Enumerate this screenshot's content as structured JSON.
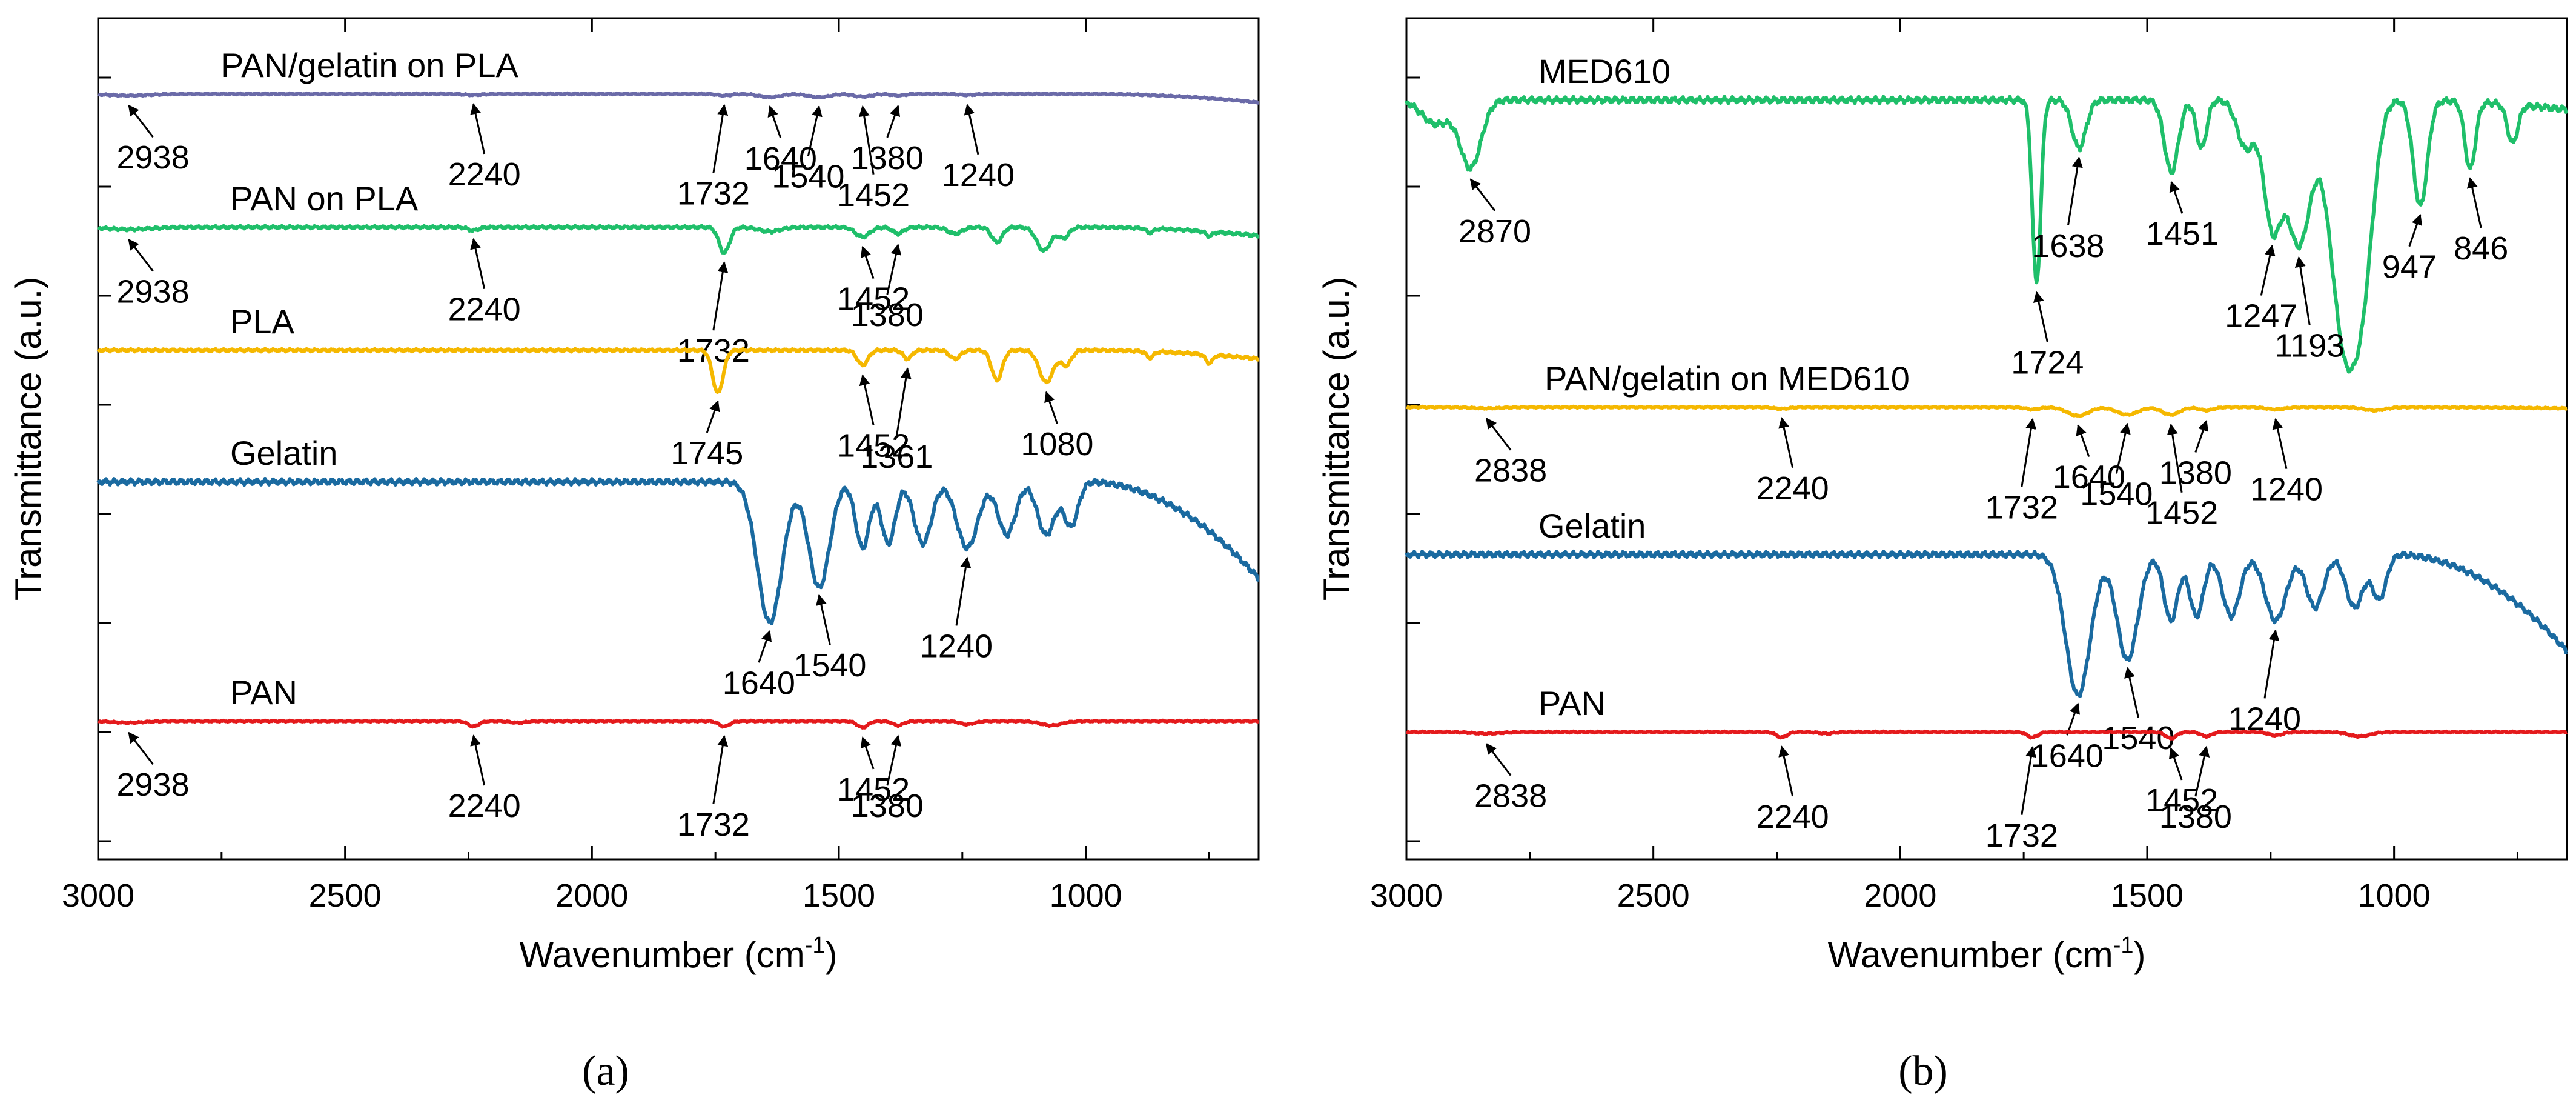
{
  "colors": {
    "red": "#e41a1c",
    "blue": "#1a6aa0",
    "yellow": "#f5b800",
    "green": "#1fbf6a",
    "purple": "#6a6aa8",
    "axis": "#000000"
  },
  "chart_data": [
    {
      "type": "line",
      "caption": "(a)",
      "xlabel": "Wavenumber (cm",
      "xlabel_sup": "-1",
      "xlabel_end": ")",
      "ylabel": "Transmittance (a.u.)",
      "xlim": [
        3000,
        650
      ],
      "x_reversed": true,
      "x_ticks": [
        "3000",
        "2500",
        "2000",
        "1500",
        "1000"
      ],
      "grid": false,
      "series": [
        {
          "name": "PAN/gelatin on PLA",
          "color": "purple",
          "baseline": 0.94,
          "tail": -0.08,
          "bands": [
            [
              2938,
              0.015,
              60
            ],
            [
              2240,
              0.01,
              25
            ],
            [
              1732,
              0.015,
              20
            ],
            [
              1640,
              0.03,
              30
            ],
            [
              1540,
              0.03,
              30
            ],
            [
              1452,
              0.025,
              25
            ],
            [
              1380,
              0.015,
              20
            ],
            [
              1240,
              0.01,
              25
            ]
          ],
          "peaks": [
            "2938",
            "2240",
            "1732",
            "1640",
            "1540",
            "1452",
            "1380",
            "1240"
          ]
        },
        {
          "name": "PAN on PLA",
          "color": "green",
          "baseline": 0.745,
          "tail": -0.04,
          "bands": [
            [
              2938,
              0.01,
              60
            ],
            [
              2240,
              0.015,
              15
            ],
            [
              1732,
              0.12,
              15
            ],
            [
              1640,
              0.02,
              30
            ],
            [
              1452,
              0.045,
              20
            ],
            [
              1380,
              0.03,
              15
            ],
            [
              1265,
              0.03,
              20
            ],
            [
              1180,
              0.07,
              15
            ],
            [
              1085,
              0.11,
              20
            ],
            [
              1045,
              0.05,
              15
            ],
            [
              870,
              0.02,
              10
            ],
            [
              750,
              0.02,
              10
            ]
          ],
          "peaks": [
            "2938",
            "2240",
            "1732",
            "1452",
            "1380"
          ]
        },
        {
          "name": "PLA",
          "color": "yellow",
          "baseline": 0.52,
          "tail": -0.04,
          "bands": [
            [
              1745,
              0.2,
              15
            ],
            [
              1452,
              0.07,
              15
            ],
            [
              1361,
              0.04,
              12
            ],
            [
              1265,
              0.04,
              15
            ],
            [
              1180,
              0.14,
              15
            ],
            [
              1080,
              0.15,
              20
            ],
            [
              1040,
              0.07,
              15
            ],
            [
              870,
              0.03,
              10
            ],
            [
              750,
              0.04,
              10
            ]
          ],
          "peaks": [
            "1745",
            "1452",
            "1361",
            "1080"
          ]
        },
        {
          "name": "Gelatin",
          "color": "blue",
          "baseline": 0.2,
          "tail": -0.22,
          "bands": [
            [
              1640,
              0.32,
              35
            ],
            [
              1540,
              0.24,
              30
            ],
            [
              1452,
              0.15,
              20
            ],
            [
              1400,
              0.14,
              20
            ],
            [
              1330,
              0.14,
              25
            ],
            [
              1240,
              0.15,
              30
            ],
            [
              1160,
              0.12,
              25
            ],
            [
              1080,
              0.12,
              25
            ],
            [
              1030,
              0.1,
              20
            ]
          ],
          "peaks": [
            "1640",
            "1540",
            "1240"
          ]
        },
        {
          "name": "PAN",
          "color": "red",
          "baseline": 0.0,
          "tail": 0.0,
          "bands": [
            [
              2938,
              0.015,
              40
            ],
            [
              2240,
              0.05,
              15
            ],
            [
              2150,
              0.015,
              20
            ],
            [
              1732,
              0.05,
              15
            ],
            [
              1452,
              0.06,
              15
            ],
            [
              1380,
              0.04,
              15
            ],
            [
              1240,
              0.03,
              20
            ],
            [
              1070,
              0.04,
              30
            ]
          ],
          "peaks": [
            "2938",
            "2240",
            "1732",
            "1452",
            "1380"
          ]
        }
      ]
    },
    {
      "type": "line",
      "caption": "(b)",
      "xlabel": "Wavenumber (cm",
      "xlabel_sup": "-1",
      "xlabel_end": ")",
      "ylabel": "Transmittance (a.u.)",
      "xlim": [
        3000,
        650
      ],
      "x_reversed": true,
      "x_ticks": [
        "3000",
        "2500",
        "2000",
        "1500",
        "1000"
      ],
      "grid": false,
      "series": [
        {
          "name": "MED610",
          "color": "green",
          "baseline": 0.95,
          "tail": -0.02,
          "bands": [
            [
              2870,
              0.14,
              30
            ],
            [
              2940,
              0.05,
              40
            ],
            [
              1724,
              0.38,
              12
            ],
            [
              1638,
              0.1,
              20
            ],
            [
              1451,
              0.15,
              20
            ],
            [
              1390,
              0.1,
              15
            ],
            [
              1300,
              0.1,
              25
            ],
            [
              1247,
              0.25,
              25
            ],
            [
              1193,
              0.3,
              35
            ],
            [
              1100,
              0.5,
              40
            ],
            [
              1060,
              0.25,
              30
            ],
            [
              947,
              0.22,
              20
            ],
            [
              846,
              0.14,
              15
            ],
            [
              760,
              0.08,
              15
            ]
          ],
          "peaks": [
            "2870",
            "1724",
            "1638",
            "1451",
            "1247",
            "1193",
            "947",
            "846"
          ]
        },
        {
          "name": "PAN/gelatin on MED610",
          "color": "yellow",
          "baseline": 0.62,
          "tail": -0.01,
          "bands": [
            [
              2838,
              0.01,
              40
            ],
            [
              2240,
              0.015,
              20
            ],
            [
              1732,
              0.02,
              20
            ],
            [
              1640,
              0.08,
              30
            ],
            [
              1540,
              0.07,
              30
            ],
            [
              1452,
              0.07,
              25
            ],
            [
              1380,
              0.03,
              20
            ],
            [
              1240,
              0.02,
              25
            ],
            [
              1040,
              0.03,
              30
            ]
          ],
          "peaks": [
            "2838",
            "2240",
            "1732",
            "1640",
            "1540",
            "1452",
            "1380",
            "1240"
          ]
        },
        {
          "name": "Gelatin",
          "color": "blue",
          "baseline": 0.29,
          "tail": -0.22,
          "bands": [
            [
              1640,
              0.32,
              35
            ],
            [
              1540,
              0.24,
              30
            ],
            [
              1452,
              0.15,
              20
            ],
            [
              1400,
              0.14,
              20
            ],
            [
              1330,
              0.14,
              25
            ],
            [
              1240,
              0.15,
              30
            ],
            [
              1160,
              0.12,
              25
            ],
            [
              1080,
              0.12,
              25
            ],
            [
              1030,
              0.1,
              20
            ]
          ],
          "peaks": [
            "1640",
            "1540",
            "1240"
          ]
        },
        {
          "name": "PAN",
          "color": "red",
          "baseline": 0.0,
          "tail": 0.0,
          "bands": [
            [
              2838,
              0.015,
              40
            ],
            [
              2240,
              0.05,
              15
            ],
            [
              2150,
              0.015,
              20
            ],
            [
              1732,
              0.05,
              15
            ],
            [
              1452,
              0.06,
              15
            ],
            [
              1380,
              0.04,
              15
            ],
            [
              1240,
              0.03,
              20
            ],
            [
              1070,
              0.04,
              30
            ]
          ],
          "peaks": [
            "2838",
            "2240",
            "1732",
            "1452",
            "1380"
          ]
        }
      ]
    }
  ]
}
